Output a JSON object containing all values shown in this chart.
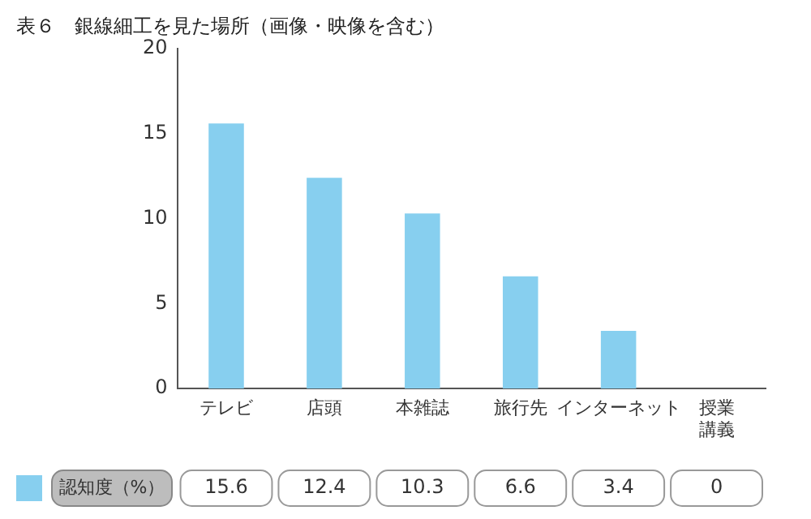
{
  "chart_data": {
    "type": "bar",
    "title": "表６　銀線細工を見た場所（画像・映像を含む）",
    "categories": [
      "テレビ",
      "店頭",
      "本雑誌",
      "旅行先",
      "インターネット",
      "授業講義"
    ],
    "series": [
      {
        "name": "認知度（%）",
        "color": "#87cfef",
        "values": [
          15.6,
          12.4,
          10.3,
          6.6,
          3.4,
          0
        ]
      }
    ],
    "ylim": [
      0,
      20
    ],
    "yticks": [
      0,
      5,
      10,
      15,
      20
    ],
    "grid": false,
    "legend": "bottom",
    "data_labels": true
  }
}
